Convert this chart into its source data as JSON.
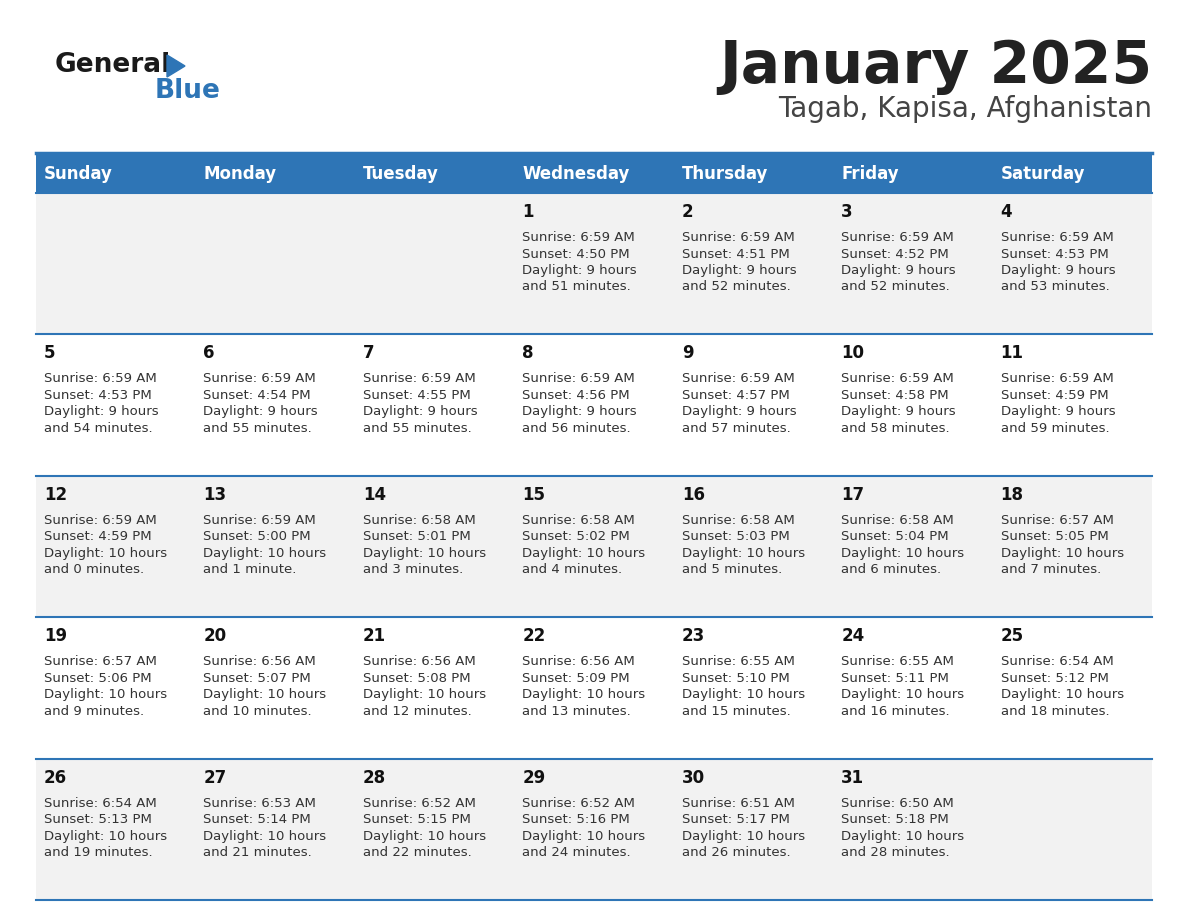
{
  "title": "January 2025",
  "subtitle": "Tagab, Kapisa, Afghanistan",
  "days_of_week": [
    "Sunday",
    "Monday",
    "Tuesday",
    "Wednesday",
    "Thursday",
    "Friday",
    "Saturday"
  ],
  "header_bg": "#2E75B6",
  "header_text": "#FFFFFF",
  "row_bg_even": "#F2F2F2",
  "row_bg_odd": "#FFFFFF",
  "divider_color": "#2E75B6",
  "title_color": "#222222",
  "subtitle_color": "#444444",
  "cell_text_color": "#333333",
  "day_num_color": "#111111",
  "calendar": [
    [
      {
        "day": null,
        "sunrise": null,
        "sunset": null,
        "daylight": null
      },
      {
        "day": null,
        "sunrise": null,
        "sunset": null,
        "daylight": null
      },
      {
        "day": null,
        "sunrise": null,
        "sunset": null,
        "daylight": null
      },
      {
        "day": 1,
        "sunrise": "6:59 AM",
        "sunset": "4:50 PM",
        "daylight": "9 hours\nand 51 minutes."
      },
      {
        "day": 2,
        "sunrise": "6:59 AM",
        "sunset": "4:51 PM",
        "daylight": "9 hours\nand 52 minutes."
      },
      {
        "day": 3,
        "sunrise": "6:59 AM",
        "sunset": "4:52 PM",
        "daylight": "9 hours\nand 52 minutes."
      },
      {
        "day": 4,
        "sunrise": "6:59 AM",
        "sunset": "4:53 PM",
        "daylight": "9 hours\nand 53 minutes."
      }
    ],
    [
      {
        "day": 5,
        "sunrise": "6:59 AM",
        "sunset": "4:53 PM",
        "daylight": "9 hours\nand 54 minutes."
      },
      {
        "day": 6,
        "sunrise": "6:59 AM",
        "sunset": "4:54 PM",
        "daylight": "9 hours\nand 55 minutes."
      },
      {
        "day": 7,
        "sunrise": "6:59 AM",
        "sunset": "4:55 PM",
        "daylight": "9 hours\nand 55 minutes."
      },
      {
        "day": 8,
        "sunrise": "6:59 AM",
        "sunset": "4:56 PM",
        "daylight": "9 hours\nand 56 minutes."
      },
      {
        "day": 9,
        "sunrise": "6:59 AM",
        "sunset": "4:57 PM",
        "daylight": "9 hours\nand 57 minutes."
      },
      {
        "day": 10,
        "sunrise": "6:59 AM",
        "sunset": "4:58 PM",
        "daylight": "9 hours\nand 58 minutes."
      },
      {
        "day": 11,
        "sunrise": "6:59 AM",
        "sunset": "4:59 PM",
        "daylight": "9 hours\nand 59 minutes."
      }
    ],
    [
      {
        "day": 12,
        "sunrise": "6:59 AM",
        "sunset": "4:59 PM",
        "daylight": "10 hours\nand 0 minutes."
      },
      {
        "day": 13,
        "sunrise": "6:59 AM",
        "sunset": "5:00 PM",
        "daylight": "10 hours\nand 1 minute."
      },
      {
        "day": 14,
        "sunrise": "6:58 AM",
        "sunset": "5:01 PM",
        "daylight": "10 hours\nand 3 minutes."
      },
      {
        "day": 15,
        "sunrise": "6:58 AM",
        "sunset": "5:02 PM",
        "daylight": "10 hours\nand 4 minutes."
      },
      {
        "day": 16,
        "sunrise": "6:58 AM",
        "sunset": "5:03 PM",
        "daylight": "10 hours\nand 5 minutes."
      },
      {
        "day": 17,
        "sunrise": "6:58 AM",
        "sunset": "5:04 PM",
        "daylight": "10 hours\nand 6 minutes."
      },
      {
        "day": 18,
        "sunrise": "6:57 AM",
        "sunset": "5:05 PM",
        "daylight": "10 hours\nand 7 minutes."
      }
    ],
    [
      {
        "day": 19,
        "sunrise": "6:57 AM",
        "sunset": "5:06 PM",
        "daylight": "10 hours\nand 9 minutes."
      },
      {
        "day": 20,
        "sunrise": "6:56 AM",
        "sunset": "5:07 PM",
        "daylight": "10 hours\nand 10 minutes."
      },
      {
        "day": 21,
        "sunrise": "6:56 AM",
        "sunset": "5:08 PM",
        "daylight": "10 hours\nand 12 minutes."
      },
      {
        "day": 22,
        "sunrise": "6:56 AM",
        "sunset": "5:09 PM",
        "daylight": "10 hours\nand 13 minutes."
      },
      {
        "day": 23,
        "sunrise": "6:55 AM",
        "sunset": "5:10 PM",
        "daylight": "10 hours\nand 15 minutes."
      },
      {
        "day": 24,
        "sunrise": "6:55 AM",
        "sunset": "5:11 PM",
        "daylight": "10 hours\nand 16 minutes."
      },
      {
        "day": 25,
        "sunrise": "6:54 AM",
        "sunset": "5:12 PM",
        "daylight": "10 hours\nand 18 minutes."
      }
    ],
    [
      {
        "day": 26,
        "sunrise": "6:54 AM",
        "sunset": "5:13 PM",
        "daylight": "10 hours\nand 19 minutes."
      },
      {
        "day": 27,
        "sunrise": "6:53 AM",
        "sunset": "5:14 PM",
        "daylight": "10 hours\nand 21 minutes."
      },
      {
        "day": 28,
        "sunrise": "6:52 AM",
        "sunset": "5:15 PM",
        "daylight": "10 hours\nand 22 minutes."
      },
      {
        "day": 29,
        "sunrise": "6:52 AM",
        "sunset": "5:16 PM",
        "daylight": "10 hours\nand 24 minutes."
      },
      {
        "day": 30,
        "sunrise": "6:51 AM",
        "sunset": "5:17 PM",
        "daylight": "10 hours\nand 26 minutes."
      },
      {
        "day": 31,
        "sunrise": "6:50 AM",
        "sunset": "5:18 PM",
        "daylight": "10 hours\nand 28 minutes."
      },
      {
        "day": null,
        "sunrise": null,
        "sunset": null,
        "daylight": null
      }
    ]
  ]
}
